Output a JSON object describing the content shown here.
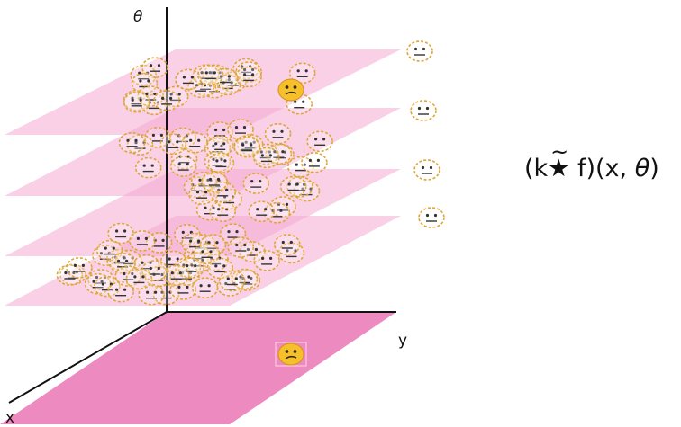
{
  "axes": {
    "theta": "θ",
    "x": "x",
    "y": "y"
  },
  "formula": {
    "open": "(k",
    "star": "★",
    "tilde": "~",
    "mid": " f)(x, ",
    "theta": "θ",
    "close": ")"
  },
  "icons": {
    "outline_face": "neutral-face-outline-icon",
    "filled_face": "confused-face-icon"
  },
  "colors": {
    "plane_fill": "#f4a9d2",
    "ground_fill": "#ec84bd",
    "face_outline": "#e0a53a",
    "face_fill": "#f6c02a",
    "axis": "#111111"
  }
}
